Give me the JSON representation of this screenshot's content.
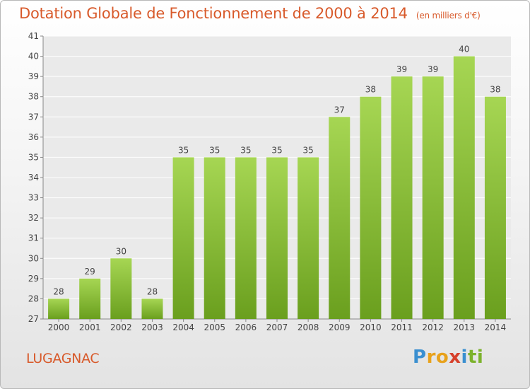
{
  "chart_data": {
    "type": "bar",
    "title": "Dotation Globale de Fonctionnement de 2000 à 2014",
    "subtitle": "(en milliers d'€)",
    "categories": [
      "2000",
      "2001",
      "2002",
      "2003",
      "2004",
      "2005",
      "2006",
      "2007",
      "2008",
      "2009",
      "2010",
      "2011",
      "2012",
      "2013",
      "2014"
    ],
    "values": [
      28,
      29,
      30,
      28,
      35,
      35,
      35,
      35,
      35,
      37,
      38,
      39,
      39,
      40,
      38
    ],
    "ylim": [
      27,
      41
    ],
    "yticks": [
      27,
      28,
      29,
      30,
      31,
      32,
      33,
      34,
      35,
      36,
      37,
      38,
      39,
      40,
      41
    ],
    "xlabel": "",
    "ylabel": "",
    "grid": true,
    "bar_color": "#7cb22c"
  },
  "commune": "LUGAGNAC",
  "logo": {
    "letters": [
      "P",
      "r",
      "o",
      "x",
      "i",
      "t",
      "i"
    ],
    "colors": [
      "#3a8fd0",
      "#e8a21c",
      "#e8a21c",
      "#d6402b",
      "#3a8fd0",
      "#7cb22c",
      "#7cb22c"
    ]
  }
}
